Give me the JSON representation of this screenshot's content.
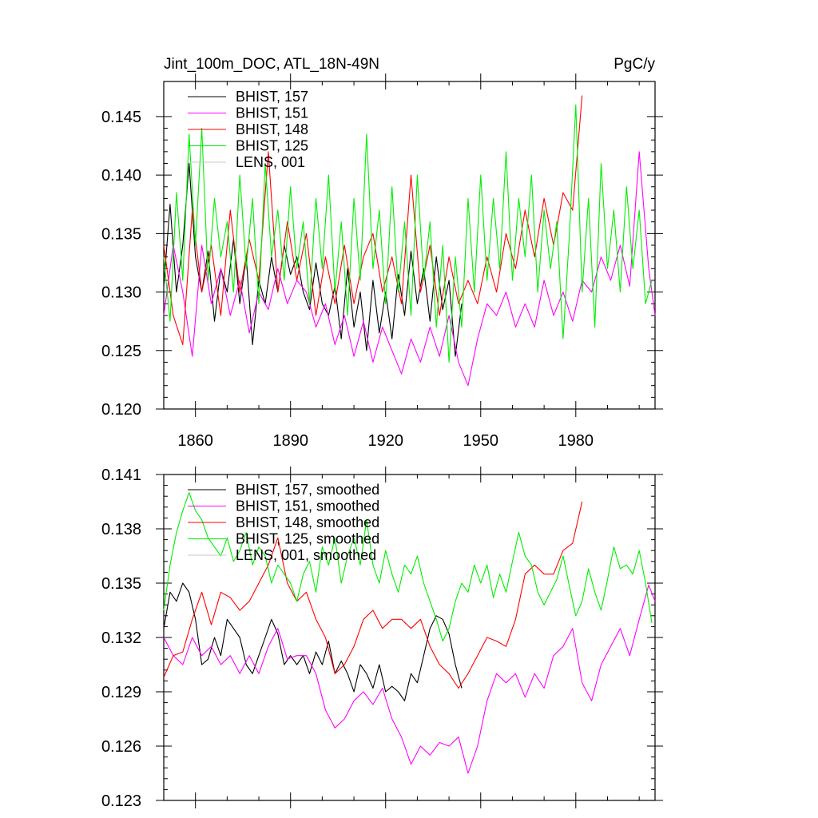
{
  "chart_data": [
    {
      "type": "line",
      "title_left": "Jint_100m_DOC, ATL_18N-49N",
      "title_right": "PgC/y",
      "xlim": [
        1850,
        2005
      ],
      "ylim": [
        0.12,
        0.148
      ],
      "xticks": [
        1860,
        1890,
        1920,
        1950,
        1980
      ],
      "xtick_labels": [
        "1860",
        "1890",
        "1920",
        "1950",
        "1980"
      ],
      "yticks": [
        0.12,
        0.125,
        0.13,
        0.135,
        0.14,
        0.145
      ],
      "ytick_labels": [
        "0.120",
        "0.125",
        "0.130",
        "0.135",
        "0.140",
        "0.145"
      ],
      "legend_position": "top-left",
      "series": [
        {
          "name": "BHIST, 157",
          "color": "#000000",
          "x": [
            1850,
            1852,
            1854,
            1856,
            1858,
            1860,
            1862,
            1864,
            1866,
            1868,
            1870,
            1872,
            1874,
            1876,
            1878,
            1880,
            1882,
            1884,
            1886,
            1888,
            1890,
            1892,
            1894,
            1896,
            1898,
            1900,
            1902,
            1904,
            1906,
            1908,
            1910,
            1912,
            1914,
            1916,
            1918,
            1920,
            1922,
            1924,
            1926,
            1928,
            1930,
            1932,
            1934,
            1936,
            1938,
            1940,
            1942,
            1944
          ],
          "y": [
            0.1305,
            0.1375,
            0.13,
            0.134,
            0.141,
            0.133,
            0.13,
            0.1335,
            0.1275,
            0.132,
            0.13,
            0.1345,
            0.129,
            0.133,
            0.1255,
            0.131,
            0.129,
            0.133,
            0.13,
            0.134,
            0.1315,
            0.133,
            0.13,
            0.1285,
            0.1325,
            0.129,
            0.128,
            0.1305,
            0.126,
            0.132,
            0.127,
            0.13,
            0.125,
            0.131,
            0.1265,
            0.13,
            0.126,
            0.1315,
            0.128,
            0.1335,
            0.129,
            0.132,
            0.1275,
            0.133,
            0.1285,
            0.131,
            0.1245,
            0.129
          ]
        },
        {
          "name": "BHIST, 151",
          "color": "#ff00ff",
          "x": [
            1850,
            1853,
            1856,
            1859,
            1862,
            1865,
            1868,
            1871,
            1874,
            1877,
            1880,
            1883,
            1886,
            1889,
            1892,
            1895,
            1898,
            1901,
            1904,
            1907,
            1910,
            1913,
            1916,
            1919,
            1922,
            1925,
            1928,
            1931,
            1934,
            1937,
            1940,
            1943,
            1946,
            1949,
            1952,
            1955,
            1958,
            1961,
            1964,
            1967,
            1970,
            1973,
            1976,
            1979,
            1982,
            1985,
            1988,
            1991,
            1994,
            1997,
            2000,
            2003,
            2005
          ],
          "y": [
            0.128,
            0.134,
            0.13,
            0.1245,
            0.134,
            0.129,
            0.132,
            0.128,
            0.131,
            0.1265,
            0.13,
            0.1285,
            0.132,
            0.129,
            0.131,
            0.13,
            0.127,
            0.129,
            0.1255,
            0.128,
            0.1245,
            0.1275,
            0.124,
            0.127,
            0.125,
            0.123,
            0.126,
            0.124,
            0.127,
            0.1245,
            0.128,
            0.124,
            0.122,
            0.126,
            0.129,
            0.128,
            0.13,
            0.127,
            0.129,
            0.127,
            0.131,
            0.128,
            0.13,
            0.1275,
            0.131,
            0.13,
            0.133,
            0.131,
            0.134,
            0.1305,
            0.142,
            0.132,
            0.128
          ]
        },
        {
          "name": "BHIST, 148",
          "color": "#ff0000",
          "x": [
            1850,
            1853,
            1856,
            1859,
            1862,
            1865,
            1868,
            1871,
            1874,
            1877,
            1880,
            1883,
            1886,
            1889,
            1892,
            1895,
            1898,
            1901,
            1904,
            1907,
            1910,
            1913,
            1916,
            1919,
            1922,
            1925,
            1928,
            1931,
            1934,
            1937,
            1940,
            1943,
            1946,
            1949,
            1952,
            1955,
            1958,
            1961,
            1964,
            1967,
            1970,
            1973,
            1976,
            1979,
            1982
          ],
          "y": [
            0.134,
            0.128,
            0.1255,
            0.137,
            0.13,
            0.134,
            0.128,
            0.137,
            0.13,
            0.1345,
            0.131,
            0.142,
            0.13,
            0.136,
            0.131,
            0.135,
            0.128,
            0.133,
            0.129,
            0.134,
            0.129,
            0.133,
            0.135,
            0.13,
            0.133,
            0.129,
            0.14,
            0.13,
            0.134,
            0.128,
            0.133,
            0.129,
            0.131,
            0.129,
            0.133,
            0.13,
            0.135,
            0.132,
            0.137,
            0.133,
            0.138,
            0.134,
            0.1385,
            0.137,
            0.1468
          ]
        },
        {
          "name": "BHIST, 125",
          "color": "#00ee00",
          "x": [
            1850,
            1852,
            1854,
            1856,
            1858,
            1860,
            1862,
            1864,
            1866,
            1868,
            1870,
            1872,
            1874,
            1876,
            1878,
            1880,
            1882,
            1884,
            1886,
            1888,
            1890,
            1892,
            1894,
            1896,
            1898,
            1900,
            1902,
            1904,
            1906,
            1908,
            1910,
            1912,
            1914,
            1916,
            1918,
            1920,
            1922,
            1924,
            1926,
            1928,
            1930,
            1932,
            1934,
            1936,
            1938,
            1940,
            1942,
            1944,
            1946,
            1948,
            1950,
            1952,
            1954,
            1956,
            1958,
            1960,
            1962,
            1964,
            1966,
            1968,
            1970,
            1972,
            1974,
            1976,
            1978,
            1980,
            1982,
            1984,
            1986,
            1988,
            1990,
            1992,
            1994,
            1996,
            1998,
            2000,
            2002,
            2004
          ],
          "y": [
            0.133,
            0.1275,
            0.1385,
            0.131,
            0.1435,
            0.134,
            0.144,
            0.131,
            0.138,
            0.133,
            0.136,
            0.13,
            0.14,
            0.132,
            0.138,
            0.129,
            0.141,
            0.133,
            0.137,
            0.131,
            0.139,
            0.132,
            0.136,
            0.129,
            0.138,
            0.132,
            0.14,
            0.13,
            0.136,
            0.128,
            0.138,
            0.131,
            0.1435,
            0.132,
            0.137,
            0.129,
            0.139,
            0.13,
            0.136,
            0.128,
            0.14,
            0.131,
            0.136,
            0.127,
            0.134,
            0.124,
            0.133,
            0.127,
            0.138,
            0.13,
            0.14,
            0.131,
            0.138,
            0.132,
            0.142,
            0.131,
            0.138,
            0.133,
            0.14,
            0.13,
            0.137,
            0.132,
            0.136,
            0.126,
            0.135,
            0.146,
            0.13,
            0.138,
            0.127,
            0.141,
            0.132,
            0.137,
            0.13,
            0.139,
            0.132,
            0.137,
            0.129,
            0.131
          ]
        },
        {
          "name": "LENS, 001",
          "color": "#c8c8c8",
          "x": [],
          "y": []
        }
      ]
    },
    {
      "type": "line",
      "xlim": [
        1850,
        2005
      ],
      "ylim": [
        0.123,
        0.141
      ],
      "xticks": [
        1860,
        1890,
        1920,
        1950,
        1980
      ],
      "yticks": [
        0.123,
        0.126,
        0.129,
        0.132,
        0.135,
        0.138,
        0.141
      ],
      "ytick_labels": [
        "0.123",
        "0.126",
        "0.129",
        "0.132",
        "0.135",
        "0.138",
        "0.141"
      ],
      "legend_position": "top-left",
      "series": [
        {
          "name": "BHIST, 157, smoothed",
          "color": "#000000",
          "x": [
            1850,
            1852,
            1854,
            1856,
            1858,
            1860,
            1862,
            1864,
            1866,
            1868,
            1870,
            1872,
            1874,
            1876,
            1878,
            1880,
            1882,
            1884,
            1886,
            1888,
            1890,
            1892,
            1894,
            1896,
            1898,
            1900,
            1902,
            1904,
            1906,
            1908,
            1910,
            1912,
            1914,
            1916,
            1918,
            1920,
            1922,
            1924,
            1926,
            1928,
            1930,
            1932,
            1934,
            1936,
            1938,
            1940,
            1942,
            1944
          ],
          "y": [
            0.1325,
            0.1345,
            0.134,
            0.135,
            0.1345,
            0.133,
            0.1305,
            0.1308,
            0.132,
            0.131,
            0.133,
            0.1325,
            0.132,
            0.1305,
            0.13,
            0.131,
            0.132,
            0.133,
            0.1322,
            0.1305,
            0.131,
            0.1305,
            0.131,
            0.13,
            0.1312,
            0.1305,
            0.1318,
            0.13,
            0.1307,
            0.13,
            0.129,
            0.1305,
            0.13,
            0.1292,
            0.1305,
            0.129,
            0.1293,
            0.129,
            0.1285,
            0.13,
            0.1295,
            0.131,
            0.1325,
            0.1332,
            0.133,
            0.1322,
            0.1305,
            0.1292
          ]
        },
        {
          "name": "BHIST, 151, smoothed",
          "color": "#ff00ff",
          "x": [
            1850,
            1853,
            1856,
            1859,
            1862,
            1865,
            1868,
            1871,
            1874,
            1877,
            1880,
            1883,
            1886,
            1889,
            1892,
            1895,
            1898,
            1901,
            1904,
            1907,
            1910,
            1913,
            1916,
            1919,
            1922,
            1925,
            1928,
            1931,
            1934,
            1937,
            1940,
            1943,
            1946,
            1949,
            1952,
            1955,
            1958,
            1961,
            1964,
            1967,
            1970,
            1973,
            1976,
            1979,
            1982,
            1985,
            1988,
            1991,
            1994,
            1997,
            2000,
            2003,
            2005
          ],
          "y": [
            0.132,
            0.131,
            0.1305,
            0.132,
            0.131,
            0.1315,
            0.1305,
            0.131,
            0.13,
            0.131,
            0.13,
            0.1315,
            0.1325,
            0.1308,
            0.131,
            0.131,
            0.13,
            0.128,
            0.127,
            0.1275,
            0.1285,
            0.129,
            0.1283,
            0.1292,
            0.1275,
            0.1265,
            0.125,
            0.126,
            0.1255,
            0.1262,
            0.126,
            0.1265,
            0.1245,
            0.126,
            0.1285,
            0.13,
            0.1295,
            0.13,
            0.1287,
            0.13,
            0.1292,
            0.131,
            0.1315,
            0.1325,
            0.1295,
            0.1285,
            0.1305,
            0.1315,
            0.1325,
            0.131,
            0.133,
            0.1349,
            0.134
          ]
        },
        {
          "name": "BHIST, 148, smoothed",
          "color": "#ff0000",
          "x": [
            1850,
            1853,
            1856,
            1859,
            1862,
            1865,
            1868,
            1871,
            1874,
            1877,
            1880,
            1883,
            1886,
            1889,
            1892,
            1895,
            1898,
            1901,
            1904,
            1907,
            1910,
            1913,
            1916,
            1919,
            1922,
            1925,
            1928,
            1931,
            1934,
            1937,
            1940,
            1943,
            1946,
            1949,
            1952,
            1955,
            1958,
            1961,
            1964,
            1967,
            1970,
            1973,
            1976,
            1979,
            1982
          ],
          "y": [
            0.1298,
            0.131,
            0.1312,
            0.133,
            0.1345,
            0.1327,
            0.1345,
            0.1342,
            0.1335,
            0.134,
            0.135,
            0.136,
            0.1375,
            0.135,
            0.134,
            0.1345,
            0.133,
            0.132,
            0.13,
            0.1305,
            0.1315,
            0.133,
            0.1335,
            0.1325,
            0.133,
            0.133,
            0.1325,
            0.133,
            0.1315,
            0.1305,
            0.13,
            0.1292,
            0.13,
            0.131,
            0.132,
            0.1318,
            0.1315,
            0.133,
            0.1355,
            0.136,
            0.1355,
            0.1355,
            0.1368,
            0.1372,
            0.1395
          ]
        },
        {
          "name": "BHIST, 125, smoothed",
          "color": "#00ee00",
          "x": [
            1850,
            1852,
            1854,
            1856,
            1858,
            1860,
            1862,
            1864,
            1866,
            1868,
            1870,
            1872,
            1874,
            1876,
            1878,
            1880,
            1882,
            1884,
            1886,
            1888,
            1890,
            1892,
            1894,
            1896,
            1898,
            1900,
            1902,
            1904,
            1906,
            1908,
            1910,
            1912,
            1914,
            1916,
            1918,
            1920,
            1922,
            1924,
            1926,
            1928,
            1930,
            1932,
            1934,
            1936,
            1938,
            1940,
            1942,
            1944,
            1946,
            1948,
            1950,
            1952,
            1954,
            1956,
            1958,
            1960,
            1962,
            1964,
            1966,
            1968,
            1970,
            1972,
            1974,
            1976,
            1978,
            1980,
            1982,
            1984,
            1986,
            1988,
            1990,
            1992,
            1994,
            1996,
            1998,
            2000,
            2002,
            2004
          ],
          "y": [
            0.1335,
            0.136,
            0.1378,
            0.139,
            0.14,
            0.139,
            0.1385,
            0.1375,
            0.137,
            0.1365,
            0.1375,
            0.1362,
            0.1368,
            0.1378,
            0.136,
            0.137,
            0.1365,
            0.135,
            0.136,
            0.1355,
            0.135,
            0.134,
            0.1355,
            0.1362,
            0.1345,
            0.137,
            0.136,
            0.1375,
            0.135,
            0.1365,
            0.1375,
            0.136,
            0.1385,
            0.136,
            0.135,
            0.1368,
            0.1355,
            0.1345,
            0.136,
            0.1355,
            0.1365,
            0.135,
            0.134,
            0.133,
            0.1318,
            0.1325,
            0.134,
            0.135,
            0.1345,
            0.136,
            0.135,
            0.136,
            0.1342,
            0.1355,
            0.1345,
            0.1362,
            0.1378,
            0.1365,
            0.136,
            0.1345,
            0.1338,
            0.1345,
            0.1352,
            0.1365,
            0.1348,
            0.1332,
            0.134,
            0.1358,
            0.1345,
            0.1335,
            0.1352,
            0.137,
            0.1358,
            0.136,
            0.1355,
            0.1368,
            0.135,
            0.1328
          ]
        },
        {
          "name": "LENS, 001, smoothed",
          "color": "#c8c8c8",
          "x": [],
          "y": []
        }
      ]
    }
  ]
}
